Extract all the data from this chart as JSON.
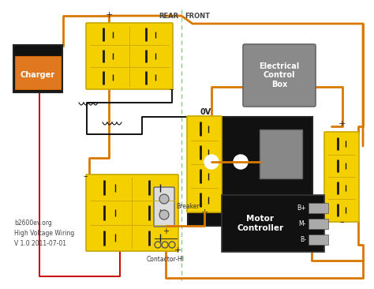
{
  "background_color": "#ffffff",
  "fig_width": 4.74,
  "fig_height": 3.66,
  "dpi": 100,
  "battery_color": "#f5d000",
  "battery_border": "#c8a800",
  "charger_box_color": "#111111",
  "charger_inner_color": "#e07820",
  "charger_label": "Charger",
  "motor_controller_color": "#111111",
  "motor_controller_label": "Motor\nController",
  "electrical_box_color": "#8a8a8a",
  "electrical_box_label": "Electrical\nControl\nBox",
  "wire_orange": "#d87800",
  "wire_black": "#111111",
  "wire_red": "#cc0000",
  "divider_color": "#88cc88",
  "divider_label_rear": "REAR",
  "divider_label_front": "FRONT",
  "label_0v": "0V",
  "label_breaker": "Breaker",
  "label_contactor": "Contactor-HI",
  "label_bplus": "B+",
  "label_m": "M-",
  "label_bminus": "B-",
  "watermark_line1": "b2600ev.org",
  "watermark_line2": "High Voltage Wiring",
  "watermark_line3": "V 1.0 2011-07-01"
}
